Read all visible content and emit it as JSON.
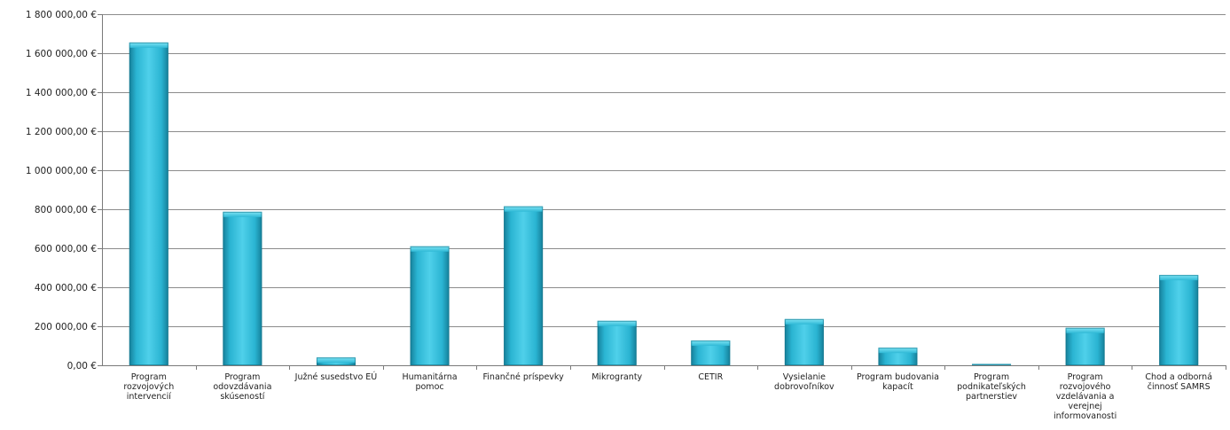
{
  "chart_data": {
    "type": "bar",
    "title": "",
    "xlabel": "",
    "ylabel": "",
    "ylim": [
      0,
      1800000
    ],
    "y_ticks": [
      {
        "value": 0,
        "label": "0,00 €"
      },
      {
        "value": 200000,
        "label": "200 000,00 €"
      },
      {
        "value": 400000,
        "label": "400 000,00 €"
      },
      {
        "value": 600000,
        "label": "600 000,00 €"
      },
      {
        "value": 800000,
        "label": "800 000,00 €"
      },
      {
        "value": 1000000,
        "label": "1 000 000,00 €"
      },
      {
        "value": 1200000,
        "label": "1 200 000,00 €"
      },
      {
        "value": 1400000,
        "label": "1 400 000,00 €"
      },
      {
        "value": 1600000,
        "label": "1 600 000,00 €"
      },
      {
        "value": 1800000,
        "label": "1 800 000,00 €"
      }
    ],
    "grid": true,
    "categories": [
      [
        "Program",
        "rozvojových",
        "intervencií"
      ],
      [
        "Program",
        "odovzdávania",
        "skúseností"
      ],
      [
        "Južné susedstvo EÚ"
      ],
      [
        "Humanitárna",
        "pomoc"
      ],
      [
        "Finančné príspevky"
      ],
      [
        "Mikrogranty"
      ],
      [
        "CETIR"
      ],
      [
        "Vysielanie",
        "dobrovoľníkov"
      ],
      [
        "Program budovania",
        "kapacít"
      ],
      [
        "Program",
        "podnikateľských",
        "partnerstiev"
      ],
      [
        "Program",
        "rozvojového",
        "vzdelávania a",
        "verejnej",
        "informovanosti"
      ],
      [
        "Chod a odborná",
        "činnosť SAMRS"
      ]
    ],
    "values": [
      1655000,
      787000,
      40000,
      610000,
      815000,
      228000,
      127000,
      237000,
      90000,
      7000,
      192000,
      463000
    ],
    "colors": {
      "bar_light": "#4fd0ea",
      "bar_mid": "#2ab4d2",
      "bar_dark": "#157f99",
      "grid": "#8c8c8c",
      "axis": "#7a7a7a"
    }
  }
}
